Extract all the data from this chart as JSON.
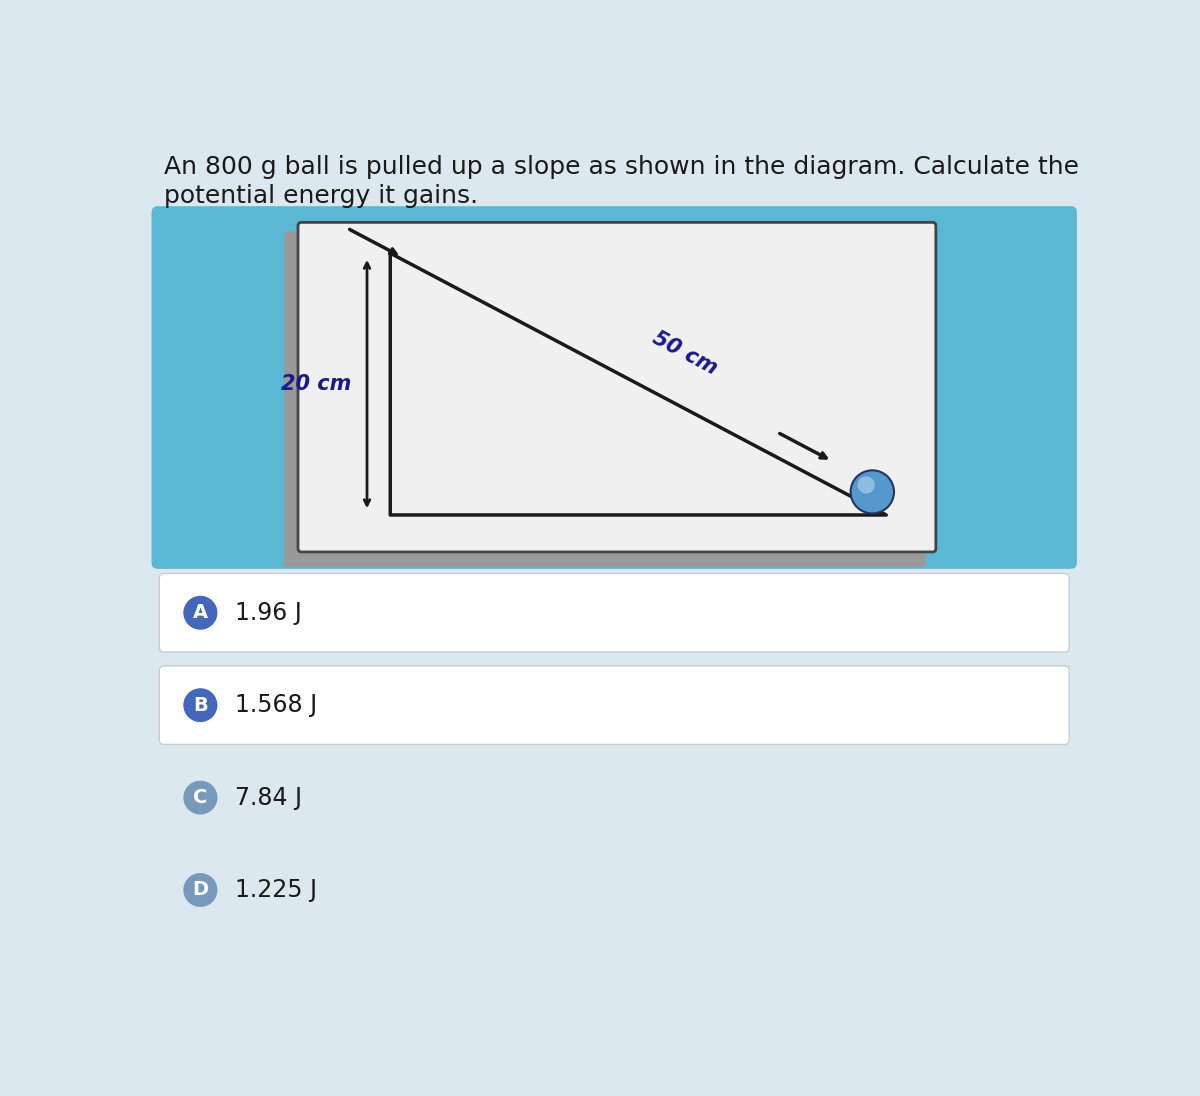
{
  "title_line1": "An 800 g ball is pulled up a slope as shown in the diagram. Calculate the",
  "title_line2": "potential energy it gains.",
  "title_fontsize": 18,
  "title_color": "#1a1a1a",
  "page_bg": "#dce8f0",
  "diagram_bg": "#5bb8d4",
  "inner_box_bg": "#f0f0f0",
  "inner_box_border": "#444444",
  "slope_color": "#1a1a1a",
  "label_50cm": "50 cm",
  "label_20cm": "20 cm",
  "label_color": "#1a1a88",
  "options": [
    {
      "letter": "A",
      "text": "1.96 J",
      "has_box": true,
      "letter_circle_color": "#4466bb"
    },
    {
      "letter": "B",
      "text": "1.568 J",
      "has_box": true,
      "letter_circle_color": "#4466bb"
    },
    {
      "letter": "C",
      "text": "7.84 J",
      "has_box": false,
      "letter_circle_color": "#7799bb"
    },
    {
      "letter": "D",
      "text": "1.225 J",
      "has_box": false,
      "letter_circle_color": "#7799bb"
    }
  ],
  "option_box_color": "#ffffff",
  "option_text_color": "#1a1a1a",
  "ball_main_color": "#5599cc",
  "ball_edge_color": "#223366",
  "ball_highlight_color": "#aaccee"
}
